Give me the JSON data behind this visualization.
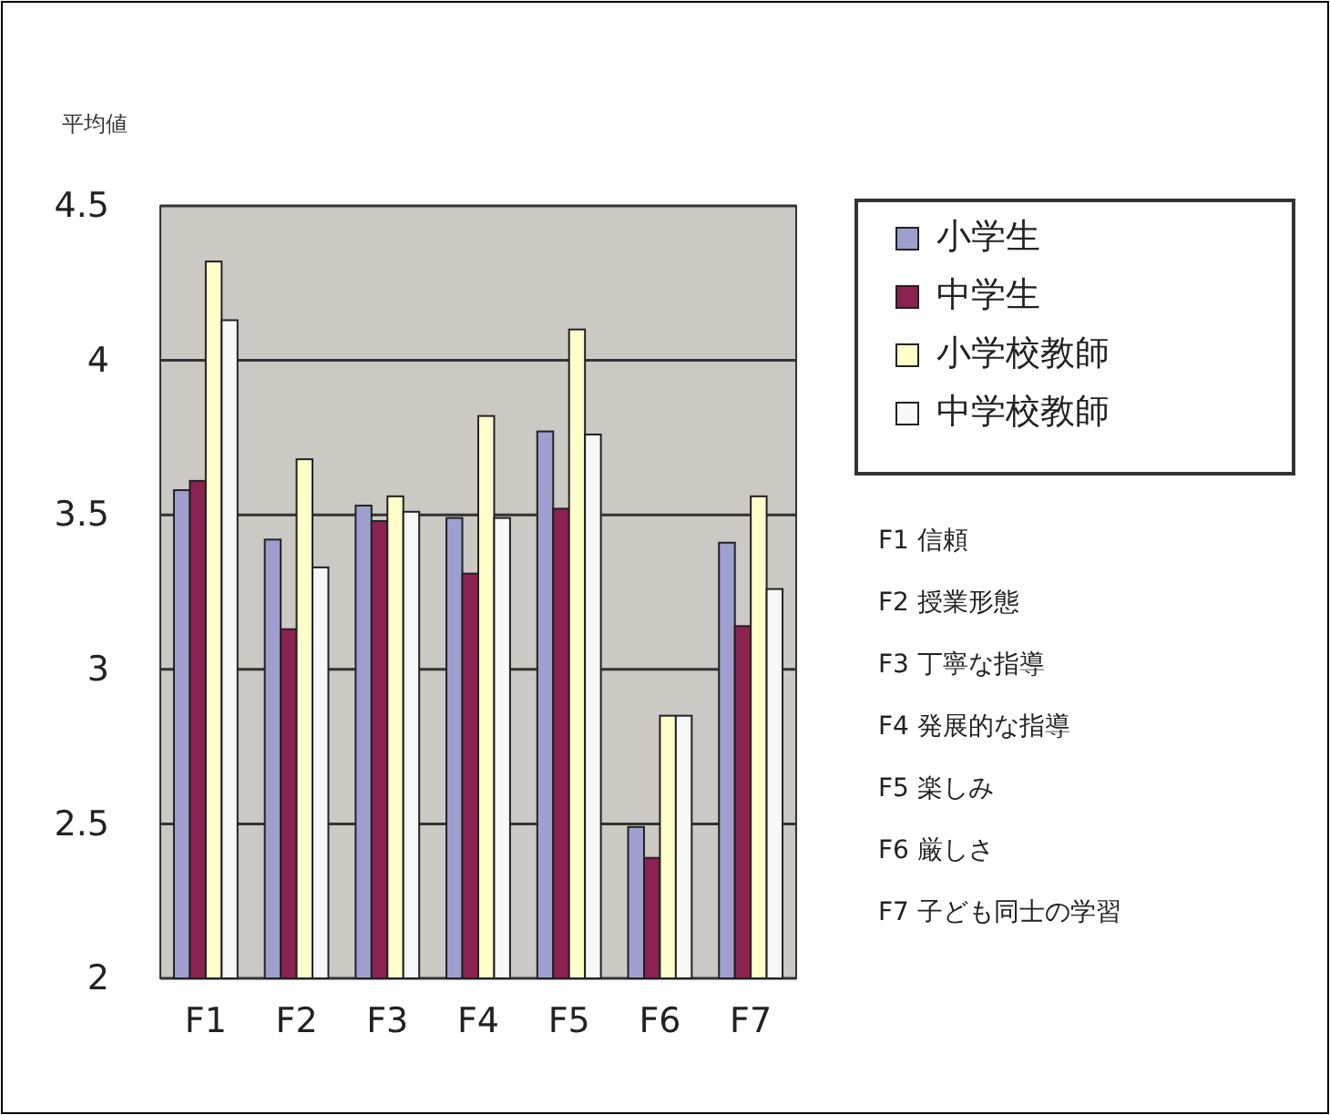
{
  "chart_data": {
    "type": "bar",
    "ylabel": "平均値",
    "categories": [
      "F1",
      "F2",
      "F3",
      "F4",
      "F5",
      "F6",
      "F7"
    ],
    "series": [
      {
        "name": "小学生",
        "color": "#9f9fcf",
        "values": [
          3.58,
          3.42,
          3.53,
          3.49,
          3.77,
          2.49,
          3.41
        ]
      },
      {
        "name": "中学生",
        "color": "#8b2252",
        "values": [
          3.61,
          3.13,
          3.48,
          3.31,
          3.52,
          2.39,
          3.14
        ]
      },
      {
        "name": "小学校教師",
        "color": "#ffffcc",
        "values": [
          4.32,
          3.68,
          3.56,
          3.82,
          4.1,
          2.85,
          3.56
        ]
      },
      {
        "name": "中学校教師",
        "color": "#f8f8f8",
        "values": [
          4.13,
          3.33,
          3.51,
          3.49,
          3.76,
          2.85,
          3.26
        ]
      }
    ],
    "ylim": [
      2,
      4.5
    ],
    "yticks": [
      2,
      2.5,
      3,
      3.5,
      4,
      4.5
    ],
    "grid": "y",
    "legend": "top right",
    "annotations": [
      "F1 信頼",
      "F2 授業形態",
      "F3 丁寧な指導",
      "F4 発展的な指導",
      "F5 楽しみ",
      "F6 厳しさ",
      "F7 子ども同士の学習"
    ]
  }
}
